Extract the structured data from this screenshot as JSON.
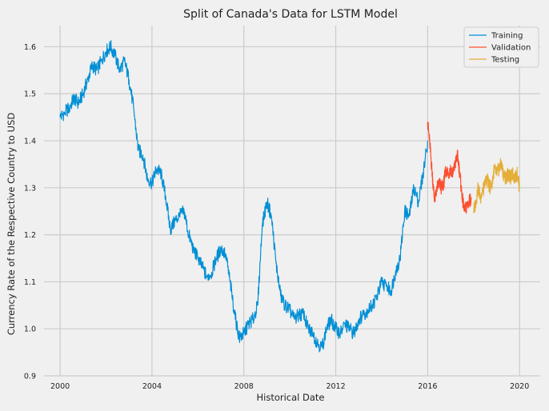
{
  "chart_data": {
    "type": "line",
    "title": "Split of Canada's Data for LSTM Model",
    "xlabel": "Historical Date",
    "ylabel": "Currency Rate of the Respective Country to USD",
    "xlim": [
      1999.3,
      2020.9
    ],
    "ylim": [
      0.9,
      1.645
    ],
    "xticks": [
      "2000",
      "2004",
      "2008",
      "2012",
      "2016",
      "2020"
    ],
    "xtick_values": [
      2000,
      2004,
      2008,
      2012,
      2016,
      2020
    ],
    "yticks": [
      "0.9",
      "1.0",
      "1.1",
      "1.2",
      "1.3",
      "1.4",
      "1.5",
      "1.6"
    ],
    "ytick_values": [
      0.9,
      1.0,
      1.1,
      1.2,
      1.3,
      1.4,
      1.5,
      1.6
    ],
    "grid": true,
    "legend_position": "top-right",
    "series": [
      {
        "name": "Training",
        "color": "#008fd5",
        "x": [
          2000.0,
          2000.2,
          2000.4,
          2000.6,
          2000.8,
          2001.0,
          2001.2,
          2001.4,
          2001.6,
          2001.8,
          2002.0,
          2002.2,
          2002.4,
          2002.6,
          2002.8,
          2003.0,
          2003.2,
          2003.4,
          2003.6,
          2003.8,
          2004.0,
          2004.2,
          2004.4,
          2004.6,
          2004.8,
          2005.0,
          2005.2,
          2005.4,
          2005.6,
          2005.8,
          2006.0,
          2006.2,
          2006.4,
          2006.6,
          2006.8,
          2007.0,
          2007.2,
          2007.4,
          2007.6,
          2007.8,
          2008.0,
          2008.2,
          2008.4,
          2008.6,
          2008.8,
          2009.0,
          2009.2,
          2009.4,
          2009.6,
          2009.8,
          2010.0,
          2010.2,
          2010.4,
          2010.6,
          2010.8,
          2011.0,
          2011.2,
          2011.4,
          2011.6,
          2011.8,
          2012.0,
          2012.2,
          2012.4,
          2012.6,
          2012.8,
          2013.0,
          2013.2,
          2013.4,
          2013.6,
          2013.8,
          2014.0,
          2014.2,
          2014.4,
          2014.6,
          2014.8,
          2015.0,
          2015.2,
          2015.4,
          2015.6,
          2015.8,
          2016.0
        ],
        "y": [
          1.45,
          1.46,
          1.47,
          1.49,
          1.48,
          1.5,
          1.53,
          1.56,
          1.55,
          1.57,
          1.59,
          1.6,
          1.58,
          1.55,
          1.57,
          1.53,
          1.47,
          1.38,
          1.37,
          1.32,
          1.31,
          1.34,
          1.33,
          1.28,
          1.21,
          1.23,
          1.24,
          1.25,
          1.2,
          1.17,
          1.15,
          1.13,
          1.11,
          1.12,
          1.15,
          1.17,
          1.16,
          1.1,
          1.03,
          0.98,
          0.99,
          1.01,
          1.02,
          1.05,
          1.22,
          1.27,
          1.24,
          1.14,
          1.07,
          1.05,
          1.04,
          1.02,
          1.03,
          1.03,
          1.0,
          0.99,
          0.97,
          0.96,
          1.0,
          1.02,
          1.0,
          0.99,
          1.01,
          1.0,
          0.99,
          1.02,
          1.03,
          1.04,
          1.05,
          1.07,
          1.1,
          1.09,
          1.08,
          1.12,
          1.15,
          1.25,
          1.24,
          1.3,
          1.27,
          1.33,
          1.4
        ]
      },
      {
        "name": "Validation",
        "color": "#fc4f30",
        "x": [
          2016.0,
          2016.1,
          2016.2,
          2016.3,
          2016.4,
          2016.5,
          2016.6,
          2016.7,
          2016.8,
          2016.9,
          2017.0,
          2017.1,
          2017.2,
          2017.3,
          2017.4,
          2017.5,
          2017.6,
          2017.7,
          2017.8,
          2017.9
        ],
        "y": [
          1.44,
          1.39,
          1.33,
          1.27,
          1.3,
          1.31,
          1.3,
          1.31,
          1.34,
          1.33,
          1.34,
          1.33,
          1.35,
          1.37,
          1.33,
          1.28,
          1.25,
          1.26,
          1.27,
          1.28
        ]
      },
      {
        "name": "Testing",
        "color": "#e5ae38",
        "x": [
          2018.0,
          2018.1,
          2018.2,
          2018.3,
          2018.4,
          2018.5,
          2018.6,
          2018.7,
          2018.8,
          2018.9,
          2019.0,
          2019.1,
          2019.2,
          2019.3,
          2019.4,
          2019.5,
          2019.6,
          2019.7,
          2019.8,
          2019.9,
          2020.0
        ],
        "y": [
          1.25,
          1.27,
          1.3,
          1.28,
          1.29,
          1.31,
          1.32,
          1.3,
          1.31,
          1.34,
          1.33,
          1.34,
          1.35,
          1.33,
          1.32,
          1.33,
          1.32,
          1.33,
          1.32,
          1.33,
          1.3
        ]
      }
    ]
  }
}
